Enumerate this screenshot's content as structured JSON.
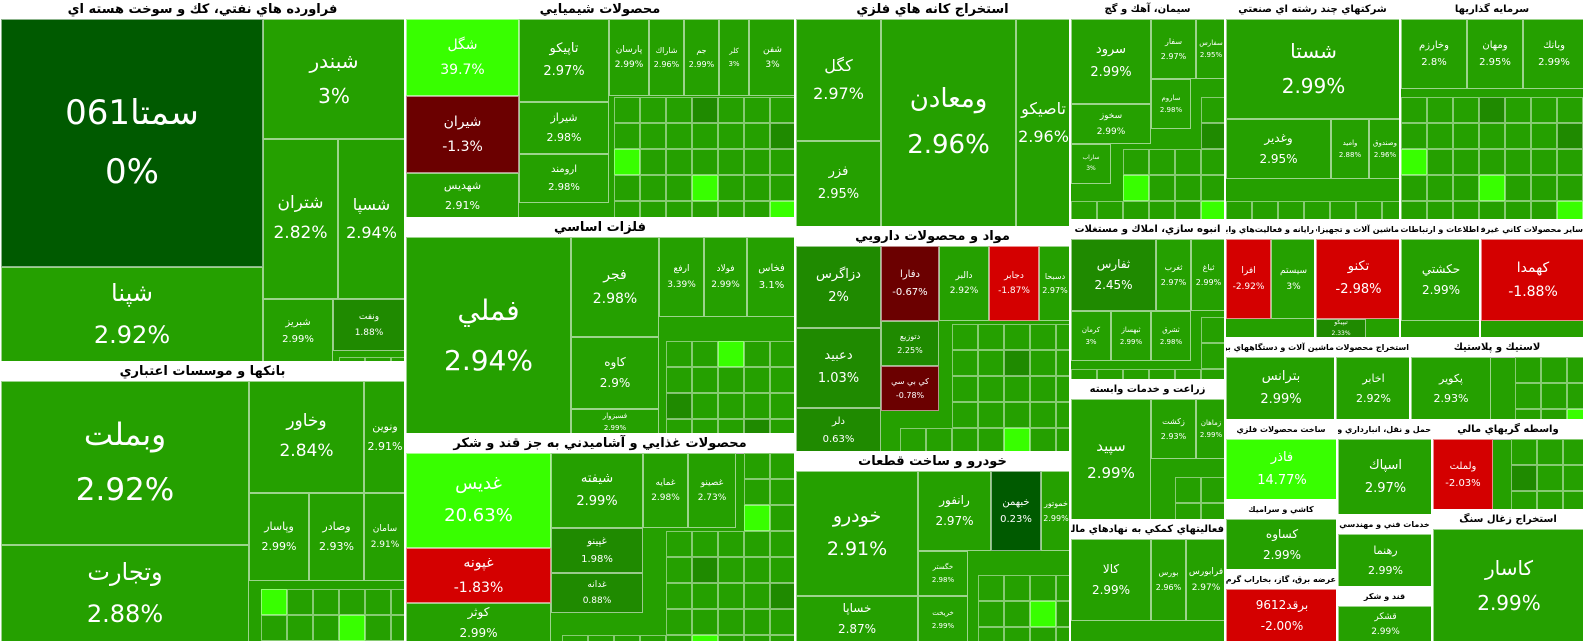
{
  "chart_data": {
    "type": "treemap",
    "colors": {
      "up": "#25a000",
      "up_bright": "#38ff00",
      "up_strong": "#1f8a00",
      "flat": "#005a00",
      "down": "#6b0000",
      "down_bright": "#d40000",
      "header": "#ffffff"
    },
    "sectors": [
      {
        "name": "فراورده هاي نفتي، كك و سوخت هسته اي",
        "tiles": [
          {
            "name": "سمتا061",
            "change": "0%"
          },
          {
            "name": "شپنا",
            "change": "2.92%"
          },
          {
            "name": "شبندر",
            "change": "3%"
          },
          {
            "name": "شتران",
            "change": "2.82%"
          },
          {
            "name": "شسپا",
            "change": "2.94%"
          },
          {
            "name": "شبريز",
            "change": "2.99%"
          },
          {
            "name": "ونفت",
            "change": "1.88%"
          }
        ]
      },
      {
        "name": "بانكها و موسسات اعتباري",
        "tiles": [
          {
            "name": "وبملت",
            "change": "2.92%"
          },
          {
            "name": "وتجارت",
            "change": "2.88%"
          },
          {
            "name": "وخاور",
            "change": "2.84%"
          },
          {
            "name": "ونوين",
            "change": "2.91%"
          },
          {
            "name": "وپاسار",
            "change": "2.99%"
          },
          {
            "name": "وصادر",
            "change": "2.93%"
          },
          {
            "name": "سامان",
            "change": "2.91%"
          }
        ]
      },
      {
        "name": "محصولات شيميايي",
        "tiles": [
          {
            "name": "شگل",
            "change": "39.7%"
          },
          {
            "name": "تاپيكو",
            "change": "2.97%"
          },
          {
            "name": "شيران",
            "change": "-1.3%"
          },
          {
            "name": "شيراز",
            "change": "2.98%"
          },
          {
            "name": "ارومند",
            "change": "2.98%"
          },
          {
            "name": "شهديس",
            "change": "2.91%"
          },
          {
            "name": "پارسان",
            "change": "2.99%"
          },
          {
            "name": "شاراك",
            "change": "2.96%"
          },
          {
            "name": "جم",
            "change": "2.99%"
          },
          {
            "name": "كلر",
            "change": "3%"
          },
          {
            "name": "شفن",
            "change": "3%"
          }
        ]
      },
      {
        "name": "فلزات اساسي",
        "tiles": [
          {
            "name": "فملي",
            "change": "2.94%"
          },
          {
            "name": "فجر",
            "change": "2.98%"
          },
          {
            "name": "كاوه",
            "change": "2.9%"
          },
          {
            "name": "فسبزوار",
            "change": "2.99%"
          },
          {
            "name": "ارفع",
            "change": "3.39%"
          },
          {
            "name": "فولاد",
            "change": "2.99%"
          },
          {
            "name": "فخاس",
            "change": "3.1%"
          }
        ]
      },
      {
        "name": "محصولات غذايي و آشاميدني به جز قند و شكر",
        "tiles": [
          {
            "name": "غديس",
            "change": "20.63%"
          },
          {
            "name": "شيفته",
            "change": "2.99%"
          },
          {
            "name": "غپونه",
            "change": "-1.83%"
          },
          {
            "name": "غمايه",
            "change": "2.98%"
          },
          {
            "name": "غصينو",
            "change": "2.73%"
          },
          {
            "name": "غپينو",
            "change": "1.98%"
          },
          {
            "name": "غدانه",
            "change": "0.88%"
          },
          {
            "name": "كوثر",
            "change": "2.99%"
          }
        ]
      },
      {
        "name": "استخراج كانه هاي فلزي",
        "tiles": [
          {
            "name": "كگل",
            "change": "2.97%"
          },
          {
            "name": "فزر",
            "change": "2.95%"
          },
          {
            "name": "ومعادن",
            "change": "2.96%"
          },
          {
            "name": "تاصيكو",
            "change": "2.96%"
          }
        ]
      },
      {
        "name": "مواد و محصولات دارويي",
        "tiles": [
          {
            "name": "دزاگرس",
            "change": "2%"
          },
          {
            "name": "دعبيد",
            "change": "1.03%"
          },
          {
            "name": "دلر",
            "change": "0.63%"
          },
          {
            "name": "دفارا",
            "change": "-0.67%"
          },
          {
            "name": "دالبر",
            "change": "2.92%"
          },
          {
            "name": "دجابر",
            "change": "-1.87%"
          },
          {
            "name": "دسبحا",
            "change": "2.97%"
          },
          {
            "name": "دتوزيع",
            "change": "2.25%"
          },
          {
            "name": "كي بي سي",
            "change": "-0.78%"
          }
        ]
      },
      {
        "name": "خودرو و ساخت قطعات",
        "tiles": [
          {
            "name": "خودرو",
            "change": "2.91%"
          },
          {
            "name": "خساپا",
            "change": "2.87%"
          },
          {
            "name": "رانفور",
            "change": "2.97%"
          },
          {
            "name": "خبهمن",
            "change": "0.23%"
          },
          {
            "name": "خگستر",
            "change": "2.98%"
          },
          {
            "name": "خريخت",
            "change": "2.99%"
          },
          {
            "name": "خموتور",
            "change": "2.99%"
          }
        ]
      },
      {
        "name": "سيمان، آهك و گچ",
        "tiles": [
          {
            "name": "سرود",
            "change": "2.99%"
          },
          {
            "name": "سفار",
            "change": "2.97%"
          },
          {
            "name": "سفارس",
            "change": "2.95%"
          },
          {
            "name": "ساروم",
            "change": "2.98%"
          },
          {
            "name": "سخوز",
            "change": "2.99%"
          },
          {
            "name": "ساراب",
            "change": "3%"
          }
        ]
      },
      {
        "name": "انبوه سازي، املاك و مستغلات",
        "tiles": [
          {
            "name": "ثفارس",
            "change": "2.45%"
          },
          {
            "name": "ثغرب",
            "change": "2.97%"
          },
          {
            "name": "ثباغ",
            "change": "2.99%"
          },
          {
            "name": "كرمان",
            "change": "3%"
          },
          {
            "name": "ثبهساز",
            "change": "2.99%"
          },
          {
            "name": "ثشرق",
            "change": "2.98%"
          }
        ]
      },
      {
        "name": "زراعت و خدمات وابسته",
        "tiles": [
          {
            "name": "سپيد",
            "change": "2.99%"
          },
          {
            "name": "زكشت",
            "change": "2.93%"
          },
          {
            "name": "زماهان",
            "change": "2.99%"
          }
        ]
      },
      {
        "name": "فعاليتهاي كمكي به نهادهاي مالي واسط",
        "tiles": [
          {
            "name": "كالا",
            "change": "2.99%"
          },
          {
            "name": "بورس",
            "change": "2.96%"
          },
          {
            "name": "فرابورس",
            "change": "2.97%"
          }
        ]
      },
      {
        "name": "شركتهاي چند رشته اي صنعتي",
        "tiles": [
          {
            "name": "شستا",
            "change": "2.99%"
          },
          {
            "name": "وغدير",
            "change": "2.95%"
          },
          {
            "name": "وامید",
            "change": "2.88%"
          },
          {
            "name": "وصندوق",
            "change": "2.96%"
          }
        ]
      },
      {
        "name": "سرمايه گذاريها",
        "tiles": [
          {
            "name": "وخارزم",
            "change": "2.8%"
          },
          {
            "name": "ومهان",
            "change": "2.95%"
          },
          {
            "name": "وبانك",
            "change": "2.99%"
          }
        ]
      },
      {
        "name": "رايانه و فعاليت‌هاي وابسته به آن",
        "tiles": [
          {
            "name": "افرا",
            "change": "-2.92%"
          },
          {
            "name": "سيستم",
            "change": "3%"
          }
        ]
      },
      {
        "name": "ماشين آلات و تجهيزات",
        "tiles": [
          {
            "name": "تكنو",
            "change": "-2.98%"
          },
          {
            "name": "تيپيكو",
            "change": "2.33%"
          }
        ]
      },
      {
        "name": "اطلاعات و ارتباطات",
        "tiles": [
          {
            "name": "حكشتي",
            "change": "2.99%"
          }
        ]
      },
      {
        "name": "ساير محصولات كاني غيرفلزي",
        "tiles": [
          {
            "name": "كهمدا",
            "change": "-1.88%"
          }
        ]
      },
      {
        "name": "ماشين آلات و دستگاههاي برقي",
        "tiles": [
          {
            "name": "بترانس",
            "change": "2.99%"
          }
        ]
      },
      {
        "name": "استخراج محصولات فلزي",
        "tiles": [
          {
            "name": "اخابر",
            "change": "2.92%"
          }
        ]
      },
      {
        "name": "لاستيك و پلاستيك",
        "tiles": [
          {
            "name": "پكوير",
            "change": "2.93%"
          }
        ]
      },
      {
        "name": "ساخت محصولات فلزي",
        "tiles": [
          {
            "name": "فاذر",
            "change": "14.77%"
          }
        ]
      },
      {
        "name": "كاشي و سراميك",
        "tiles": [
          {
            "name": "كساوه",
            "change": "2.99%"
          }
        ]
      },
      {
        "name": "عرضه برق، گاز، بخاراب گرم",
        "tiles": [
          {
            "name": "برقد9612",
            "change": "-2.00%"
          }
        ]
      },
      {
        "name": "حمل و نقل، انبارداري و ارتباطات",
        "tiles": [
          {
            "name": "اسپاك",
            "change": "2.97%"
          }
        ]
      },
      {
        "name": "خدمات فني و مهندسي",
        "tiles": [
          {
            "name": "رهنما",
            "change": "2.99%"
          }
        ]
      },
      {
        "name": "واسطه گريهاي مالي",
        "tiles": [
          {
            "name": "ولملت",
            "change": "-2.03%"
          }
        ]
      },
      {
        "name": "قند و شكر",
        "tiles": [
          {
            "name": "قشكر",
            "change": "2.99%"
          }
        ]
      },
      {
        "name": "استخراج زغال سنگ",
        "tiles": [
          {
            "name": "كاسار",
            "change": "2.99%"
          }
        ]
      }
    ]
  }
}
